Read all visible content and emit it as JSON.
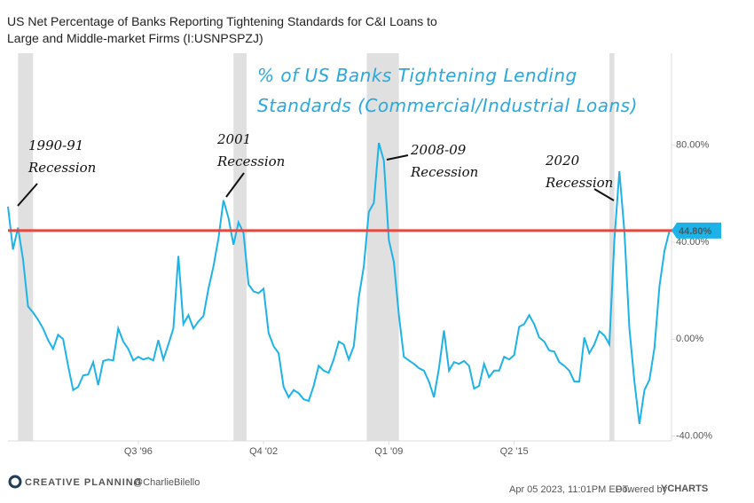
{
  "chart_data": {
    "type": "line",
    "title": "US Net Percentage of Banks Reporting Tightening Standards for C&I Loans to Large and Middle-market Firms (I:USNPSPZJ)",
    "overlay_title": "% of US Banks Tightening Lending Standards (Commercial/Industrial Loans)",
    "annotations": [
      {
        "lines": [
          "1990-91",
          "Recession"
        ]
      },
      {
        "lines": [
          "2001",
          "Recession"
        ]
      },
      {
        "lines": [
          "2008-09",
          "Recession"
        ]
      },
      {
        "lines": [
          "2020",
          "Recession"
        ]
      }
    ],
    "recessions": [
      [
        1990.5,
        1991.25
      ],
      [
        2001.25,
        2001.9
      ],
      [
        2007.9,
        2009.5
      ],
      [
        2020.0,
        2020.25
      ]
    ],
    "x": [
      1990,
      1990.25,
      1990.5,
      1990.75,
      1991,
      1991.25,
      1991.5,
      1991.75,
      1992,
      1992.25,
      1992.5,
      1992.75,
      1993,
      1993.25,
      1993.5,
      1993.75,
      1994,
      1994.25,
      1994.5,
      1994.75,
      1995,
      1995.25,
      1995.5,
      1995.75,
      1996,
      1996.25,
      1996.5,
      1996.75,
      1997,
      1997.25,
      1997.5,
      1997.75,
      1998,
      1998.25,
      1998.5,
      1998.75,
      1999,
      1999.25,
      1999.5,
      1999.75,
      2000,
      2000.25,
      2000.5,
      2000.75,
      2001,
      2001.25,
      2001.5,
      2001.75,
      2002,
      2002.25,
      2002.5,
      2002.75,
      2003,
      2003.25,
      2003.5,
      2003.75,
      2004,
      2004.25,
      2004.5,
      2004.75,
      2005,
      2005.25,
      2005.5,
      2005.75,
      2006,
      2006.25,
      2006.5,
      2006.75,
      2007,
      2007.25,
      2007.5,
      2007.75,
      2008,
      2008.25,
      2008.5,
      2008.75,
      2009,
      2009.25,
      2009.5,
      2009.75,
      2010,
      2010.25,
      2010.5,
      2010.75,
      2011,
      2011.25,
      2011.5,
      2011.75,
      2012,
      2012.25,
      2012.5,
      2012.75,
      2013,
      2013.25,
      2013.5,
      2013.75,
      2014,
      2014.25,
      2014.5,
      2014.75,
      2015,
      2015.25,
      2015.5,
      2015.75,
      2016,
      2016.25,
      2016.5,
      2016.75,
      2017,
      2017.25,
      2017.5,
      2017.75,
      2018,
      2018.25,
      2018.5,
      2018.75,
      2019,
      2019.25,
      2019.5,
      2019.75,
      2020,
      2020.25,
      2020.5,
      2020.75,
      2021,
      2021.25,
      2021.5,
      2021.75,
      2022,
      2022.25,
      2022.5,
      2022.75,
      2023
    ],
    "series": [
      {
        "name": "US Net Percentage of Banks Reporting Tightening Standards",
        "color": "#1eb3e8",
        "values": [
          54.7,
          37,
          46,
          33,
          13.5,
          11,
          8,
          4.4,
          -0.4,
          -4,
          1.8,
          0,
          -11,
          -21,
          -19.7,
          -15,
          -14.6,
          -9.5,
          -19,
          -9,
          -8.4,
          -8.8,
          4.4,
          -1,
          -4,
          -8.8,
          -7.3,
          -8.4,
          -7.7,
          -8.8,
          -0.4,
          -8.4,
          -2.2,
          4.4,
          34.3,
          6.2,
          9.9,
          4.4,
          7.3,
          9.5,
          20.8,
          30,
          41.6,
          57.3,
          50,
          39,
          48.2,
          43.8,
          22.6,
          19.7,
          19,
          20.8,
          2.6,
          -2.9,
          -5.8,
          -19.7,
          -24,
          -21,
          -22.3,
          -24.8,
          -25.5,
          -19.3,
          -11,
          -13,
          -13.9,
          -8.4,
          -1,
          -2.2,
          -8.4,
          -2.9,
          17.2,
          30,
          52.5,
          56.2,
          81,
          73.7,
          40.9,
          31.8,
          9.9,
          -7.3,
          -8.8,
          -10.2,
          -12,
          -13,
          -17.5,
          -24,
          -12,
          3.6,
          -13,
          -9.5,
          -10.2,
          -9,
          -11,
          -20.4,
          -19.3,
          -10.2,
          -15.7,
          -13,
          -13,
          -7.3,
          -8.4,
          -6.6,
          5.1,
          6.2,
          9.9,
          6.2,
          0.7,
          -1,
          -4.7,
          -5.1,
          -9.5,
          -11,
          -13,
          -17.5,
          -17.5,
          0.7,
          -5.8,
          -2.2,
          3.3,
          1.5,
          -2.2,
          40.9,
          69.3,
          44.5,
          4.4,
          -17.5,
          -35,
          -21,
          -16.8,
          -3.6,
          21.9,
          36.5,
          44.8
        ]
      }
    ],
    "reference_line": {
      "value": 44.8,
      "label": "44.80%",
      "color": "#e8473f"
    },
    "xlim": [
      1990,
      2023.1
    ],
    "xticks": [
      {
        "value": 1996.5,
        "label": "Q3 '96"
      },
      {
        "value": 2002.75,
        "label": "Q4 '02"
      },
      {
        "value": 2009.0,
        "label": "Q1 '09"
      },
      {
        "value": 2015.25,
        "label": "Q2 '15"
      }
    ],
    "ylim": [
      -42,
      118
    ],
    "yticks": [
      {
        "value": 80,
        "label": "80.00%"
      },
      {
        "value": 40,
        "label": "40.00%"
      },
      {
        "value": 0,
        "label": "0.00%"
      },
      {
        "value": -40,
        "label": "-40.00%"
      }
    ],
    "grid": false,
    "footer": {
      "brand": "CREATIVE PLANNING",
      "handle": "@CharlieBilello",
      "timestamp": "Apr 05 2023, 11:01PM EDT.",
      "powered": "Powered by",
      "logo": "YCHARTS"
    }
  }
}
